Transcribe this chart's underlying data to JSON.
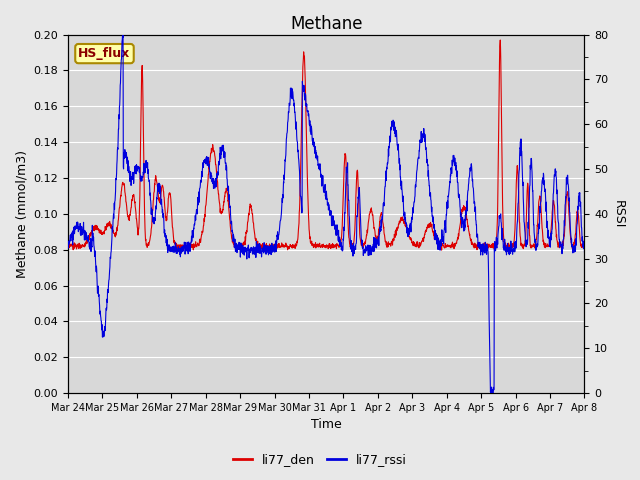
{
  "title": "Methane",
  "xlabel": "Time",
  "ylabel_left": "Methane (mmol/m3)",
  "ylabel_right": "RSSI",
  "ylim_left": [
    0.0,
    0.2
  ],
  "ylim_right": [
    0,
    80
  ],
  "left_yticks": [
    0.0,
    0.02,
    0.04,
    0.06,
    0.08,
    0.1,
    0.12,
    0.14,
    0.16,
    0.18,
    0.2
  ],
  "right_yticks": [
    0,
    10,
    20,
    30,
    40,
    50,
    60,
    70,
    80
  ],
  "xtick_labels": [
    "Mar 24",
    "Mar 25",
    "Mar 26",
    "Mar 27",
    "Mar 28",
    "Mar 29",
    "Mar 30",
    "Mar 31",
    "Apr 1",
    "Apr 2",
    "Apr 3",
    "Apr 4",
    "Apr 5",
    "Apr 6",
    "Apr 7",
    "Apr 8"
  ],
  "line_red_color": "#dd0000",
  "line_blue_color": "#0000dd",
  "legend_box_label": "HS_flux",
  "legend_box_facecolor": "#ffffaa",
  "legend_box_edgecolor": "#aa8800",
  "legend_entries": [
    "li77_den",
    "li77_rssi"
  ],
  "fig_facecolor": "#e8e8e8",
  "plot_facecolor": "#d8d8d8",
  "grid_color": "#ffffff",
  "title_fontsize": 12,
  "axis_label_fontsize": 9,
  "tick_fontsize": 8,
  "legend_fontsize": 9
}
